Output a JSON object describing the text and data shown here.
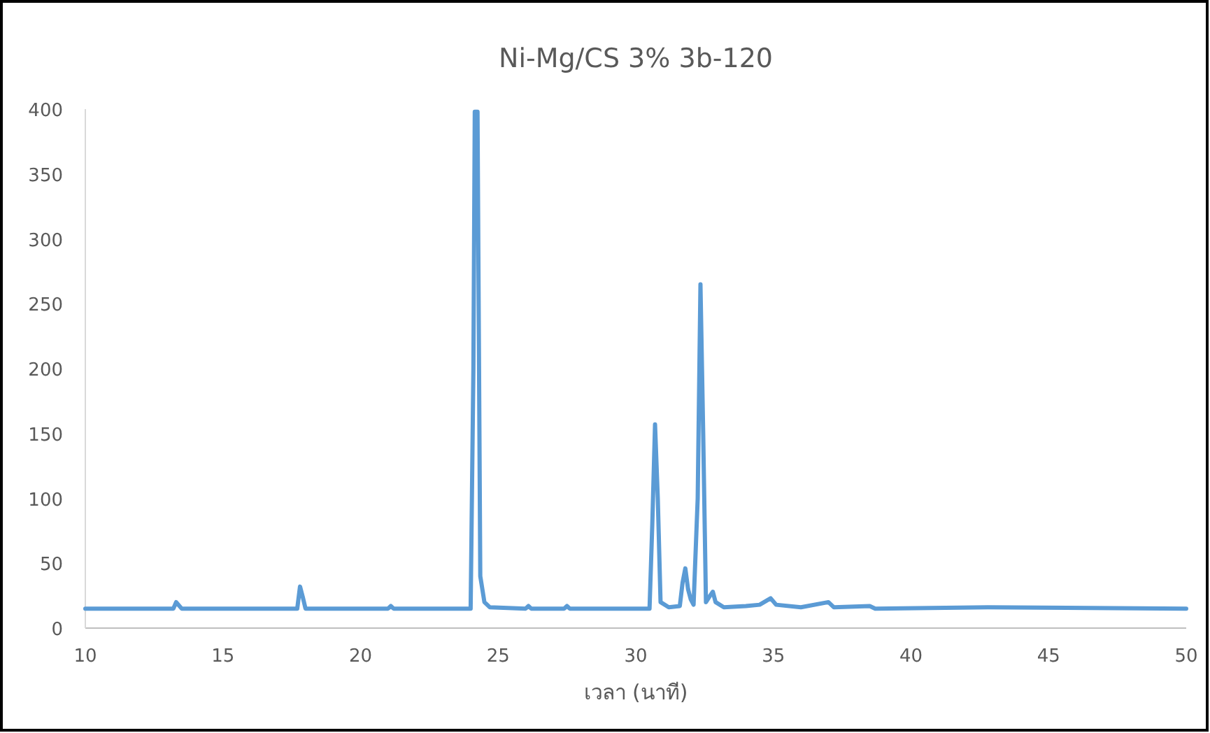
{
  "chart_data": {
    "type": "line",
    "title": "Ni-Mg/CS 3% 3b-120",
    "xlabel": "เวลา (นาที)",
    "xlim": [
      10,
      50
    ],
    "xticks": [
      10,
      15,
      20,
      25,
      30,
      35,
      40,
      45,
      50
    ],
    "ylim": [
      0,
      400
    ],
    "yticks": [
      0,
      50,
      100,
      150,
      200,
      250,
      300,
      350,
      400
    ],
    "grid": false,
    "series": [
      {
        "color": "#5b9bd5",
        "x": [
          10,
          13.2,
          13.3,
          13.5,
          17.7,
          17.8,
          17.9,
          18.0,
          21,
          21.1,
          21.2,
          24.0,
          24.1,
          24.15,
          24.25,
          24.35,
          24.5,
          24.7,
          26.0,
          26.1,
          26.2,
          27.4,
          27.5,
          27.6,
          30.5,
          30.6,
          30.7,
          30.8,
          30.9,
          31.2,
          31.6,
          31.7,
          31.8,
          31.9,
          32.0,
          32.1,
          32.25,
          32.35,
          32.45,
          32.55,
          32.7,
          32.8,
          32.9,
          33.2,
          34.0,
          34.5,
          34.9,
          35.1,
          36,
          37.0,
          37.2,
          38.5,
          38.7,
          42.8,
          50
        ],
        "values": [
          15,
          15,
          20,
          15,
          15,
          32,
          24,
          15,
          15,
          17,
          15,
          15,
          200,
          398,
          398,
          40,
          20,
          16,
          15,
          17,
          15,
          15,
          17,
          15,
          15,
          80,
          157,
          100,
          20,
          16,
          17,
          35,
          46,
          30,
          22,
          18,
          100,
          265,
          150,
          20,
          25,
          28,
          20,
          16,
          17,
          18,
          23,
          18,
          16,
          20,
          16,
          17,
          15,
          16,
          15
        ]
      }
    ]
  }
}
